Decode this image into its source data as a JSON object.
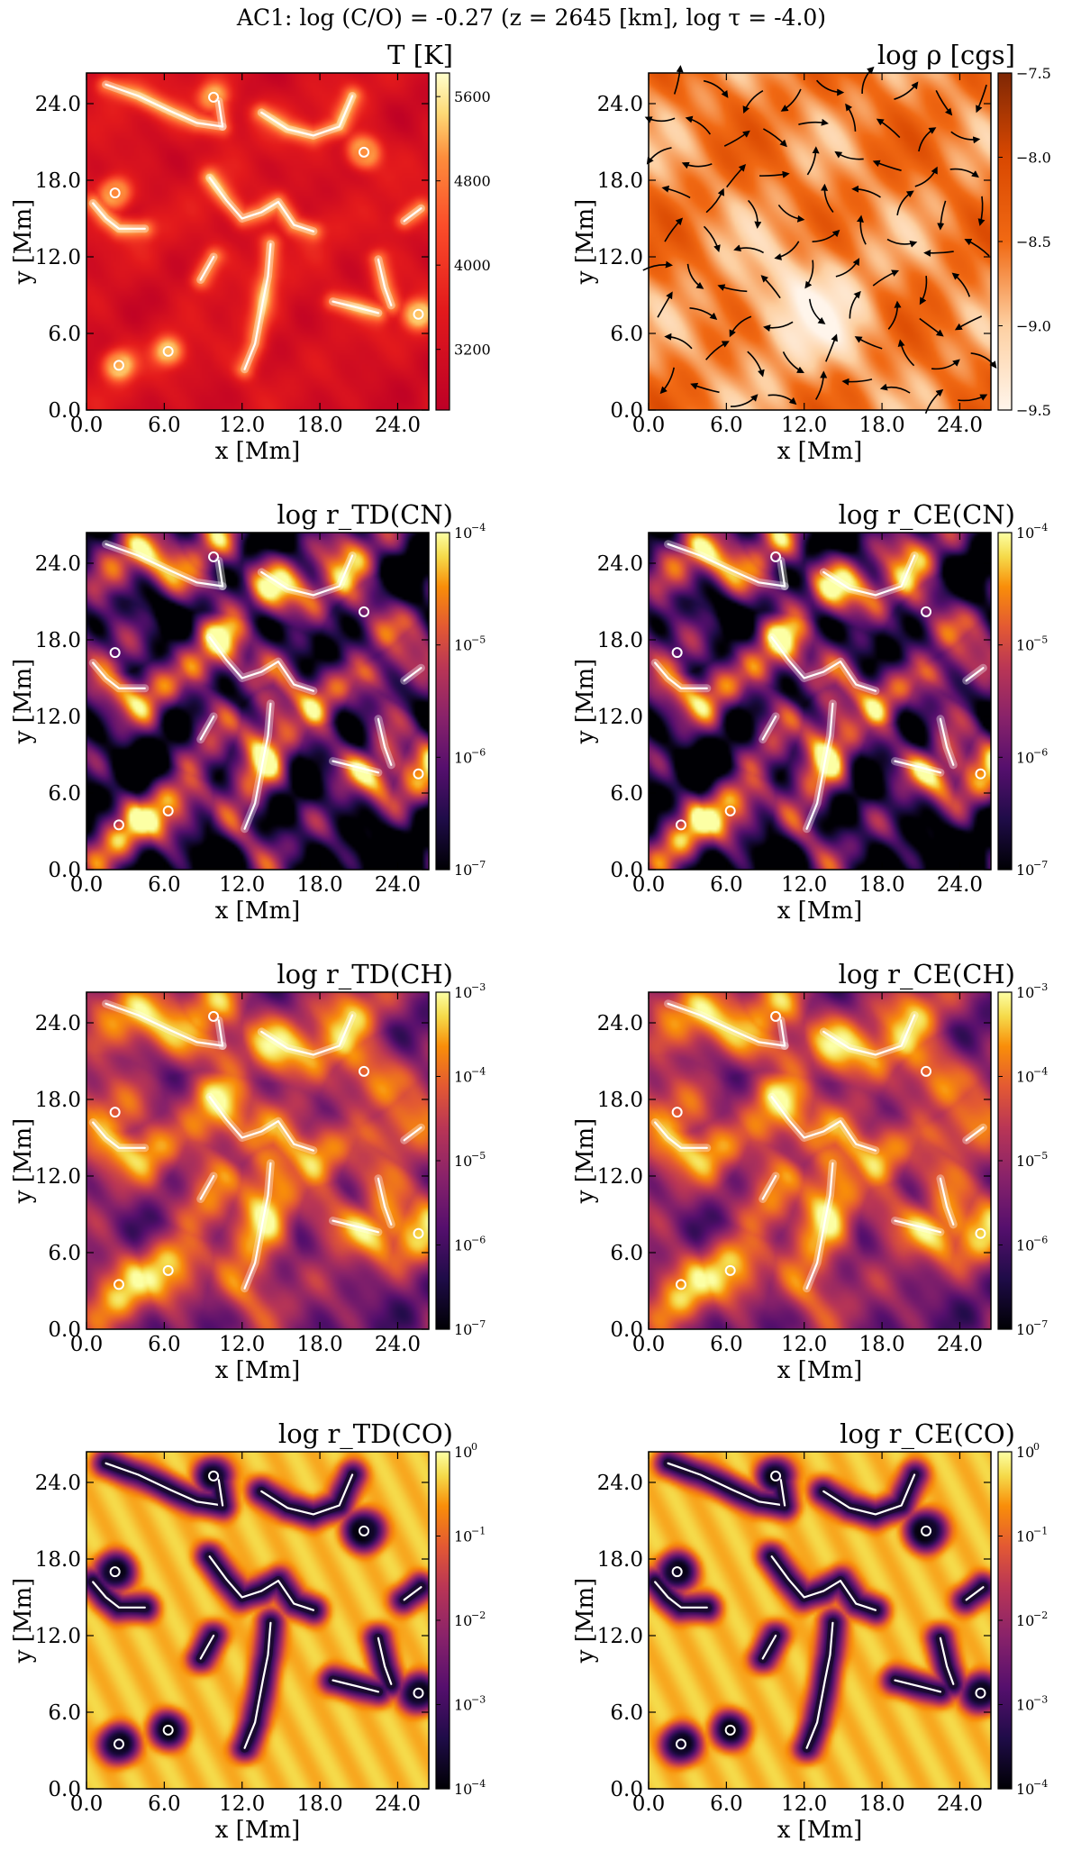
{
  "suptitle": "AC1: log (C/O) = -0.27 (z = 2645 [km], log τ = -4.0)",
  "axes": {
    "xlabel": "x [Mm]",
    "ylabel": "y [Mm]",
    "xticks": [
      "0.0",
      "6.0",
      "12.0",
      "18.0",
      "24.0"
    ],
    "yticks": [
      "0.0",
      "6.0",
      "12.0",
      "18.0",
      "24.0"
    ]
  },
  "panels": [
    {
      "id": "temperature",
      "title": "T [K]",
      "colormap": "YlOrRd_r",
      "pattern": "temp",
      "colorbar": {
        "labels": [
          {
            "v": 0.93,
            "t": "5600"
          },
          {
            "v": 0.68,
            "t": "4800"
          },
          {
            "v": 0.43,
            "t": "4000"
          },
          {
            "v": 0.18,
            "t": "3200"
          }
        ],
        "log": false
      },
      "streamlines": false
    },
    {
      "id": "density",
      "title": "log ρ [cgs]",
      "colormap": "Oranges_r",
      "pattern": "dens",
      "colorbar": {
        "labels": [
          {
            "v": 1.0,
            "t": "−7.5"
          },
          {
            "v": 0.75,
            "t": "−8.0"
          },
          {
            "v": 0.5,
            "t": "−8.5"
          },
          {
            "v": 0.25,
            "t": "−9.0"
          },
          {
            "v": 0.0,
            "t": "−9.5"
          }
        ],
        "log": false
      },
      "streamlines": true
    },
    {
      "id": "r-td-cn",
      "title": "log r_TD(CN)",
      "colormap": "inferno",
      "pattern": "cn",
      "colorbar": {
        "log": true,
        "exponents": [
          "−4",
          "−5",
          "−6",
          "−7"
        ]
      }
    },
    {
      "id": "r-ce-cn",
      "title": "log r_CE(CN)",
      "colormap": "inferno",
      "pattern": "cn",
      "colorbar": {
        "log": true,
        "exponents": [
          "−4",
          "−5",
          "−6",
          "−7"
        ]
      }
    },
    {
      "id": "r-td-ch",
      "title": "log r_TD(CH)",
      "colormap": "inferno",
      "pattern": "ch",
      "colorbar": {
        "log": true,
        "exponents": [
          "−3",
          "−4",
          "−5",
          "−6",
          "−7"
        ]
      }
    },
    {
      "id": "r-ce-ch",
      "title": "log r_CE(CH)",
      "colormap": "inferno",
      "pattern": "ch",
      "colorbar": {
        "log": true,
        "exponents": [
          "−3",
          "−4",
          "−5",
          "−6",
          "−7"
        ]
      }
    },
    {
      "id": "r-td-co",
      "title": "log r_TD(CO)",
      "colormap": "inferno",
      "pattern": "co",
      "colorbar": {
        "log": true,
        "exponents": [
          "0",
          "−1",
          "−2",
          "−3",
          "−4"
        ]
      }
    },
    {
      "id": "r-ce-co",
      "title": "log r_CE(CO)",
      "colormap": "inferno",
      "pattern": "co",
      "colorbar": {
        "log": true,
        "exponents": [
          "0",
          "−1",
          "−2",
          "−3",
          "−4"
        ]
      }
    }
  ],
  "chart_data": {
    "type": "heatmap",
    "title": "AC1: log (C/O) = -0.27 (z = 2645 [km], log τ = -4.0)",
    "xlabel": "x [Mm]",
    "ylabel": "y [Mm]",
    "xlim": [
      0,
      26.4
    ],
    "ylim": [
      0,
      26.4
    ],
    "xticks": [
      0,
      6,
      12,
      18,
      24
    ],
    "yticks": [
      0,
      6,
      12,
      18,
      24
    ],
    "grid": false,
    "colorbar_ranges": {
      "T [K]": [
        2700,
        5800
      ],
      "log ρ [cgs]": [
        -9.5,
        -7.5
      ],
      "log r_TD(CN)": [
        -7,
        -4
      ],
      "log r_CE(CN)": [
        -7,
        -4
      ],
      "log r_TD(CH)": [
        -7,
        -3
      ],
      "log r_CE(CH)": [
        -7,
        -3
      ],
      "log r_TD(CO)": [
        -4,
        0
      ],
      "log r_CE(CO)": [
        -4,
        0
      ]
    },
    "contour": "white temperature contour drawn on all panels except log ρ",
    "streamlines": "black velocity streamlines on log ρ panel"
  }
}
